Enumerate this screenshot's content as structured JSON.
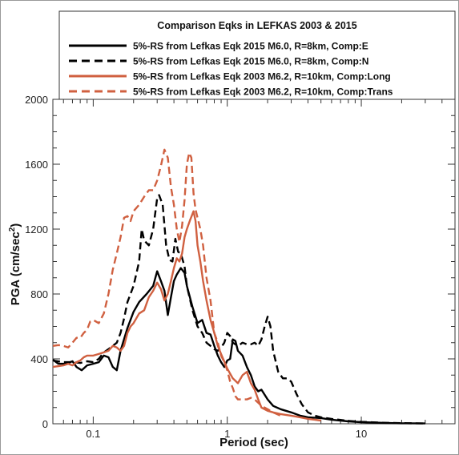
{
  "chart_data": {
    "type": "line",
    "title": "Comparison Eqks in LEFKAS 2003 & 2015",
    "xlabel": "Period (sec)",
    "ylabel_main": "PGA (cm/sec",
    "ylabel_sup": "2",
    "ylabel_tail": ")",
    "xscale": "log",
    "xlim": [
      0.05,
      50
    ],
    "ylim": [
      0,
      2000
    ],
    "x_ticks": [
      {
        "value": 0.1,
        "label": "0.1"
      },
      {
        "value": 1,
        "label": "1"
      },
      {
        "value": 10,
        "label": "10"
      }
    ],
    "y_ticks": [
      {
        "value": 0,
        "label": "0"
      },
      {
        "value": 400,
        "label": "400"
      },
      {
        "value": 800,
        "label": "800"
      },
      {
        "value": 1200,
        "label": "1200"
      },
      {
        "value": 1600,
        "label": "1600"
      },
      {
        "value": 2000,
        "label": "2000"
      }
    ],
    "legend_placement": "top",
    "grid": false,
    "series": [
      {
        "name": "5%-RS from Lefkas Eqk 2015 M6.0, R=8km, Comp:E",
        "color": "#000000",
        "dash": "solid",
        "points": [
          [
            0.05,
            395
          ],
          [
            0.055,
            370
          ],
          [
            0.062,
            370
          ],
          [
            0.07,
            385
          ],
          [
            0.075,
            350
          ],
          [
            0.082,
            330
          ],
          [
            0.09,
            360
          ],
          [
            0.1,
            370
          ],
          [
            0.11,
            380
          ],
          [
            0.12,
            420
          ],
          [
            0.13,
            410
          ],
          [
            0.14,
            350
          ],
          [
            0.15,
            330
          ],
          [
            0.16,
            450
          ],
          [
            0.18,
            590
          ],
          [
            0.2,
            690
          ],
          [
            0.22,
            750
          ],
          [
            0.25,
            800
          ],
          [
            0.28,
            850
          ],
          [
            0.3,
            940
          ],
          [
            0.32,
            880
          ],
          [
            0.34,
            820
          ],
          [
            0.36,
            670
          ],
          [
            0.38,
            780
          ],
          [
            0.4,
            880
          ],
          [
            0.42,
            920
          ],
          [
            0.45,
            960
          ],
          [
            0.48,
            930
          ],
          [
            0.5,
            850
          ],
          [
            0.55,
            720
          ],
          [
            0.6,
            620
          ],
          [
            0.65,
            640
          ],
          [
            0.7,
            560
          ],
          [
            0.75,
            550
          ],
          [
            0.8,
            480
          ],
          [
            0.85,
            420
          ],
          [
            0.9,
            380
          ],
          [
            0.95,
            350
          ],
          [
            1.0,
            390
          ],
          [
            1.05,
            400
          ],
          [
            1.1,
            520
          ],
          [
            1.15,
            510
          ],
          [
            1.2,
            450
          ],
          [
            1.3,
            420
          ],
          [
            1.4,
            350
          ],
          [
            1.5,
            300
          ],
          [
            1.6,
            230
          ],
          [
            1.7,
            200
          ],
          [
            1.8,
            210
          ],
          [
            2.0,
            150
          ],
          [
            2.2,
            110
          ],
          [
            2.5,
            90
          ],
          [
            3.0,
            70
          ],
          [
            3.5,
            50
          ],
          [
            4.0,
            40
          ],
          [
            5.0,
            35
          ],
          [
            6.0,
            25
          ],
          [
            8.0,
            15
          ],
          [
            10,
            10
          ],
          [
            15,
            5
          ],
          [
            20,
            3
          ],
          [
            30,
            2
          ]
        ]
      },
      {
        "name": "5%-RS from Lefkas Eqk 2015 M6.0, R=8km, Comp:N",
        "color": "#000000",
        "dash": "dashed",
        "points": [
          [
            0.05,
            390
          ],
          [
            0.06,
            380
          ],
          [
            0.07,
            380
          ],
          [
            0.08,
            375
          ],
          [
            0.09,
            385
          ],
          [
            0.1,
            380
          ],
          [
            0.11,
            400
          ],
          [
            0.12,
            440
          ],
          [
            0.13,
            460
          ],
          [
            0.14,
            480
          ],
          [
            0.15,
            500
          ],
          [
            0.16,
            560
          ],
          [
            0.17,
            650
          ],
          [
            0.18,
            750
          ],
          [
            0.2,
            850
          ],
          [
            0.22,
            1000
          ],
          [
            0.23,
            1200
          ],
          [
            0.24,
            1130
          ],
          [
            0.26,
            1100
          ],
          [
            0.28,
            1200
          ],
          [
            0.3,
            1390
          ],
          [
            0.31,
            1410
          ],
          [
            0.33,
            1350
          ],
          [
            0.35,
            1100
          ],
          [
            0.37,
            1010
          ],
          [
            0.39,
            1000
          ],
          [
            0.41,
            1140
          ],
          [
            0.43,
            1060
          ],
          [
            0.45,
            1050
          ],
          [
            0.48,
            970
          ],
          [
            0.5,
            850
          ],
          [
            0.55,
            700
          ],
          [
            0.6,
            600
          ],
          [
            0.65,
            560
          ],
          [
            0.7,
            500
          ],
          [
            0.75,
            480
          ],
          [
            0.8,
            460
          ],
          [
            0.85,
            450
          ],
          [
            0.9,
            470
          ],
          [
            0.95,
            500
          ],
          [
            1.0,
            560
          ],
          [
            1.05,
            540
          ],
          [
            1.1,
            500
          ],
          [
            1.2,
            480
          ],
          [
            1.3,
            500
          ],
          [
            1.4,
            490
          ],
          [
            1.5,
            490
          ],
          [
            1.6,
            500
          ],
          [
            1.7,
            480
          ],
          [
            1.8,
            520
          ],
          [
            1.9,
            600
          ],
          [
            2.0,
            660
          ],
          [
            2.1,
            600
          ],
          [
            2.2,
            450
          ],
          [
            2.4,
            320
          ],
          [
            2.6,
            280
          ],
          [
            2.8,
            280
          ],
          [
            3.0,
            260
          ],
          [
            3.3,
            180
          ],
          [
            3.6,
            120
          ],
          [
            4.0,
            70
          ],
          [
            4.5,
            50
          ],
          [
            5.0,
            40
          ],
          [
            6.0,
            30
          ],
          [
            8.0,
            18
          ],
          [
            10,
            12
          ],
          [
            15,
            6
          ],
          [
            20,
            4
          ],
          [
            30,
            2
          ]
        ]
      },
      {
        "name": "5%-RS from Lefkas Eqk 2003 M6.2, R=10km, Comp:Long",
        "color": "#d06040",
        "dash": "solid",
        "points": [
          [
            0.05,
            350
          ],
          [
            0.055,
            355
          ],
          [
            0.06,
            360
          ],
          [
            0.065,
            370
          ],
          [
            0.07,
            360
          ],
          [
            0.075,
            380
          ],
          [
            0.08,
            390
          ],
          [
            0.085,
            410
          ],
          [
            0.09,
            420
          ],
          [
            0.1,
            420
          ],
          [
            0.11,
            430
          ],
          [
            0.12,
            440
          ],
          [
            0.13,
            450
          ],
          [
            0.14,
            480
          ],
          [
            0.15,
            470
          ],
          [
            0.16,
            450
          ],
          [
            0.17,
            480
          ],
          [
            0.18,
            560
          ],
          [
            0.19,
            600
          ],
          [
            0.2,
            620
          ],
          [
            0.22,
            680
          ],
          [
            0.24,
            700
          ],
          [
            0.26,
            780
          ],
          [
            0.28,
            820
          ],
          [
            0.3,
            870
          ],
          [
            0.32,
            830
          ],
          [
            0.34,
            760
          ],
          [
            0.36,
            800
          ],
          [
            0.38,
            880
          ],
          [
            0.4,
            960
          ],
          [
            0.42,
            1020
          ],
          [
            0.44,
            1000
          ],
          [
            0.46,
            1050
          ],
          [
            0.48,
            1150
          ],
          [
            0.5,
            1200
          ],
          [
            0.53,
            1260
          ],
          [
            0.56,
            1310
          ],
          [
            0.58,
            1250
          ],
          [
            0.6,
            1100
          ],
          [
            0.63,
            1000
          ],
          [
            0.66,
            880
          ],
          [
            0.7,
            760
          ],
          [
            0.75,
            640
          ],
          [
            0.8,
            560
          ],
          [
            0.85,
            480
          ],
          [
            0.9,
            430
          ],
          [
            1.0,
            340
          ],
          [
            1.1,
            280
          ],
          [
            1.2,
            250
          ],
          [
            1.3,
            300
          ],
          [
            1.4,
            320
          ],
          [
            1.5,
            250
          ],
          [
            1.6,
            210
          ],
          [
            1.7,
            150
          ],
          [
            1.8,
            100
          ],
          [
            2.0,
            80
          ],
          [
            2.2,
            70
          ],
          [
            2.5,
            60
          ],
          [
            3.0,
            50
          ],
          [
            3.5,
            40
          ],
          [
            4.0,
            30
          ],
          [
            4.5,
            25
          ],
          [
            5.0,
            20
          ]
        ]
      },
      {
        "name": "5%-RS from Lefkas Eqk 2003 M6.2, R=10km, Comp:Trans",
        "color": "#d06040",
        "dash": "dashed",
        "points": [
          [
            0.05,
            480
          ],
          [
            0.055,
            485
          ],
          [
            0.06,
            480
          ],
          [
            0.065,
            470
          ],
          [
            0.07,
            500
          ],
          [
            0.075,
            530
          ],
          [
            0.08,
            530
          ],
          [
            0.085,
            560
          ],
          [
            0.09,
            580
          ],
          [
            0.095,
            630
          ],
          [
            0.1,
            640
          ],
          [
            0.11,
            620
          ],
          [
            0.12,
            680
          ],
          [
            0.13,
            800
          ],
          [
            0.14,
            950
          ],
          [
            0.15,
            1050
          ],
          [
            0.16,
            1150
          ],
          [
            0.17,
            1270
          ],
          [
            0.18,
            1280
          ],
          [
            0.19,
            1250
          ],
          [
            0.2,
            1310
          ],
          [
            0.22,
            1350
          ],
          [
            0.24,
            1400
          ],
          [
            0.26,
            1440
          ],
          [
            0.28,
            1440
          ],
          [
            0.3,
            1500
          ],
          [
            0.32,
            1590
          ],
          [
            0.34,
            1690
          ],
          [
            0.36,
            1640
          ],
          [
            0.38,
            1460
          ],
          [
            0.4,
            1350
          ],
          [
            0.42,
            1200
          ],
          [
            0.44,
            1120
          ],
          [
            0.46,
            1220
          ],
          [
            0.48,
            1380
          ],
          [
            0.5,
            1600
          ],
          [
            0.52,
            1670
          ],
          [
            0.54,
            1640
          ],
          [
            0.56,
            1420
          ],
          [
            0.58,
            1320
          ],
          [
            0.6,
            1270
          ],
          [
            0.63,
            1200
          ],
          [
            0.66,
            1100
          ],
          [
            0.7,
            900
          ],
          [
            0.75,
            760
          ],
          [
            0.8,
            560
          ],
          [
            0.85,
            500
          ],
          [
            0.9,
            420
          ],
          [
            0.95,
            380
          ],
          [
            1.0,
            330
          ],
          [
            1.05,
            260
          ],
          [
            1.1,
            220
          ],
          [
            1.15,
            170
          ],
          [
            1.2,
            150
          ],
          [
            1.3,
            150
          ],
          [
            1.4,
            150
          ],
          [
            1.5,
            160
          ],
          [
            1.6,
            150
          ],
          [
            1.7,
            130
          ],
          [
            1.8,
            110
          ],
          [
            2.0,
            90
          ],
          [
            2.2,
            70
          ],
          [
            2.5,
            50
          ]
        ]
      }
    ]
  }
}
